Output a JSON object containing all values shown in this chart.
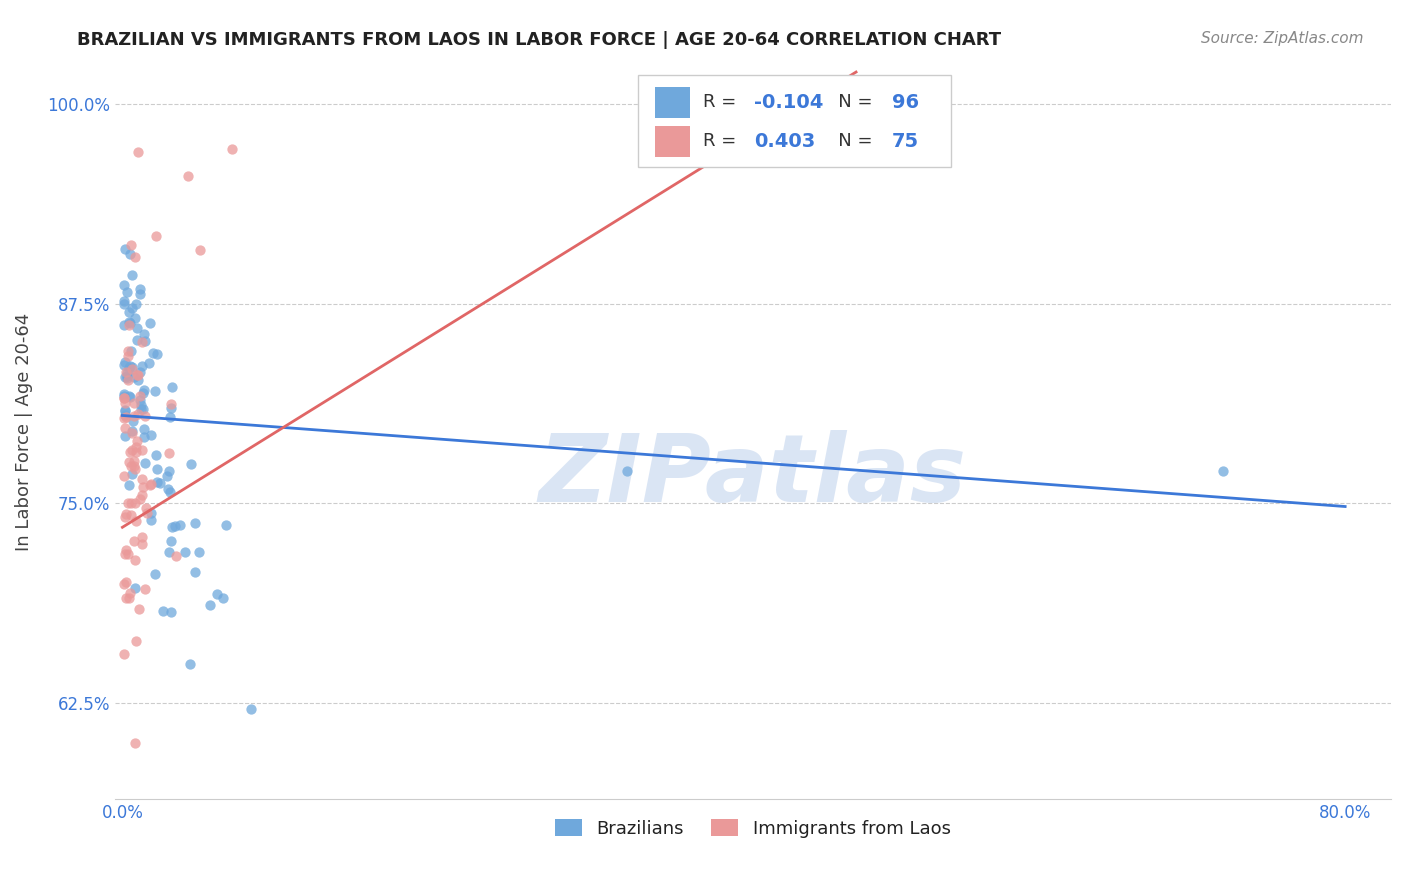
{
  "title": "BRAZILIAN VS IMMIGRANTS FROM LAOS IN LABOR FORCE | AGE 20-64 CORRELATION CHART",
  "source": "Source: ZipAtlas.com",
  "ylabel": "In Labor Force | Age 20-64",
  "watermark": "ZIPatlas",
  "blue_R": -0.104,
  "blue_N": 96,
  "pink_R": 0.403,
  "pink_N": 75,
  "blue_color": "#6fa8dc",
  "pink_color": "#ea9999",
  "blue_line_color": "#3c78d8",
  "pink_line_color": "#e06666",
  "legend_label_blue": "Brazilians",
  "legend_label_pink": "Immigrants from Laos",
  "xlim_min": -0.005,
  "xlim_max": 0.83,
  "ylim_min": 0.565,
  "ylim_max": 1.025,
  "blue_line_x0": 0.0,
  "blue_line_y0": 0.805,
  "blue_line_x1": 0.8,
  "blue_line_y1": 0.748,
  "pink_line_x0": 0.0,
  "pink_line_y0": 0.735,
  "pink_line_x1": 0.48,
  "pink_line_y1": 1.02
}
